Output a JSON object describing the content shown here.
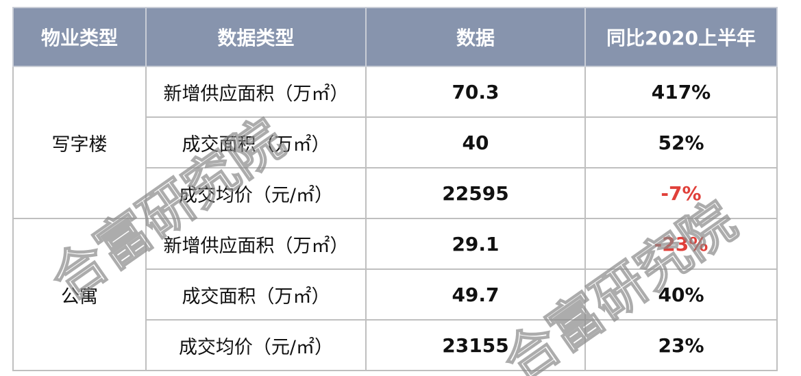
{
  "table": {
    "headers": [
      "物业类型",
      "数据类型",
      "数据",
      "同比2020上半年"
    ],
    "groups": [
      {
        "property_type": "写字楼",
        "rows": [
          {
            "metric": "新增供应面积（万㎡）",
            "value": "70.3",
            "yoy": "417%",
            "negative": false
          },
          {
            "metric": "成交面积（万㎡）",
            "value": "40",
            "yoy": "52%",
            "negative": false
          },
          {
            "metric": "成交均价（元/㎡）",
            "value": "22595",
            "yoy": "-7%",
            "negative": true
          }
        ]
      },
      {
        "property_type": "公寓",
        "rows": [
          {
            "metric": "新增供应面积（万㎡）",
            "value": "29.1",
            "yoy": "-23%",
            "negative": true
          },
          {
            "metric": "成交面积（万㎡）",
            "value": "49.7",
            "yoy": "40%",
            "negative": false
          },
          {
            "metric": "成交均价（元/㎡）",
            "value": "23155",
            "yoy": "23%",
            "negative": false
          }
        ]
      }
    ]
  },
  "watermark": "合富研究院",
  "colors": {
    "header_bg": "#8794ad",
    "negative": "#e0403a",
    "border": "#bfbfbf"
  }
}
